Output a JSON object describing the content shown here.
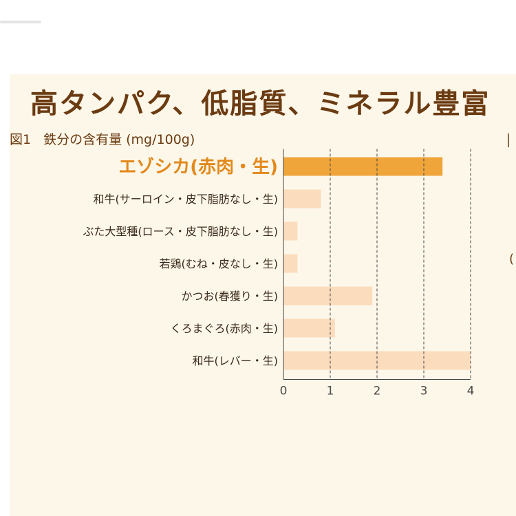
{
  "headline": "高タンパク、低脂質、ミネラル豊富",
  "figure": {
    "number": "図1",
    "caption": "鉄分の含有量 (mg/100g)"
  },
  "right_fragments": [
    "",
    "("
  ],
  "colors": {
    "panel_bg": "#fdf7e9",
    "highlight_bar": "#efa53a",
    "normal_bar": "#fbdcbd",
    "highlight_text": "#e2891c",
    "headline_text": "#6b3b12"
  },
  "chart_data": {
    "type": "bar",
    "orientation": "horizontal",
    "title": "鉄分の含有量 (mg/100g)",
    "categories": [
      "エゾシカ(赤肉・生)",
      "和牛(サーロイン・皮下脂肪なし・生)",
      "ぶた大型種(ロース・皮下脂肪なし・生)",
      "若鶏(むね・皮なし・生)",
      "かつお(春獲り・生)",
      "くろまぐろ(赤肉・生)",
      "和牛(レバー・生)"
    ],
    "values": [
      3.4,
      0.8,
      0.3,
      0.3,
      1.9,
      1.1,
      4.0
    ],
    "highlight_index": 0,
    "xlim": [
      0,
      4
    ],
    "xticks": [
      "0",
      "1",
      "2",
      "3",
      "4"
    ],
    "grid": "dashed vertical",
    "legend": "none"
  }
}
